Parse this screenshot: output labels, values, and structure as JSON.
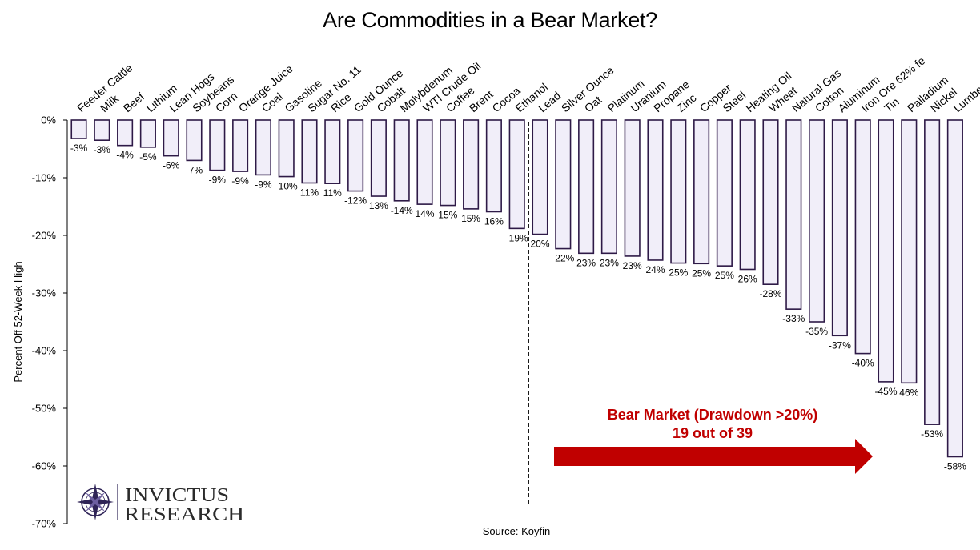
{
  "chart_data": {
    "type": "bar",
    "title": "Are Commodities in a Bear Market?",
    "ylabel": "Percent Off 52-Week High",
    "source": "Source: Koyfin",
    "ylim": [
      -70,
      0
    ],
    "yticks": [
      0,
      -10,
      -20,
      -30,
      -40,
      -50,
      -60,
      -70
    ],
    "ytick_labels": [
      "0%",
      "-10%",
      "-20%",
      "-30%",
      "-40%",
      "-50%",
      "-60%",
      "-70%"
    ],
    "categories": [
      "Feeder Cattle",
      "Milk",
      "Beef",
      "Lithium",
      "Lean Hogs",
      "Soybeans",
      "Corn",
      "Orange Juice",
      "Coal",
      "Gasoline",
      "Sugar No. 11",
      "Rice",
      "Gold Ounce",
      "Cobalt",
      "Molybdenum",
      "WTI Crude Oil",
      "Coffee",
      "Brent",
      "Cocoa",
      "Ethanol",
      "Lead",
      "Silver Ounce",
      "Oat",
      "Platinum",
      "Uranium",
      "Propane",
      "Zinc",
      "Copper",
      "Steel",
      "Heating Oil",
      "Wheat",
      "Natural Gas",
      "Cotton",
      "Aluminum",
      "Iron Ore 62% fe",
      "Tin",
      "Palladium",
      "Nickel",
      "Lumber"
    ],
    "values": [
      -3.2,
      -3.5,
      -4.4,
      -4.7,
      -6.2,
      -7.0,
      -8.7,
      -8.9,
      -9.5,
      -9.8,
      -10.9,
      -11.0,
      -12.3,
      -13.2,
      -14.0,
      -14.6,
      -14.8,
      -15.4,
      -15.9,
      -18.8,
      -19.8,
      -22.3,
      -23.1,
      -23.1,
      -23.6,
      -24.3,
      -24.8,
      -24.9,
      -25.3,
      -25.9,
      -28.5,
      -32.8,
      -35.0,
      -37.4,
      -40.5,
      -45.4,
      -45.6,
      -52.8,
      -58.4
    ],
    "value_labels": [
      "-3%",
      "-3%",
      "-4%",
      "-5%",
      "-6%",
      "-7%",
      "-9%",
      "-9%",
      "-9%",
      "-10%",
      "11%",
      "11%",
      "-12%",
      "13%",
      "-14%",
      "14%",
      "15%",
      "15%",
      "16%",
      "-19%",
      "20%",
      "-22%",
      "23%",
      "23%",
      "23%",
      "24%",
      "25%",
      "25%",
      "25%",
      "26%",
      "-28%",
      "-33%",
      "-35%",
      "-37%",
      "-40%",
      "-45%",
      "46%",
      "-53%",
      "-58%"
    ],
    "bar_fill": "#f1eef9",
    "bar_outline": "#2e1a47",
    "grid": false,
    "divider_after": "Ethanol",
    "annotation": {
      "line1": "Bear Market (Drawdown >20%)",
      "line2": "19 out of 39",
      "color": "#c00000"
    }
  },
  "logo": {
    "line1": "INVICTUS",
    "line2": "RESEARCH",
    "icon": "compass-rose-icon",
    "color": "#2f2457"
  }
}
